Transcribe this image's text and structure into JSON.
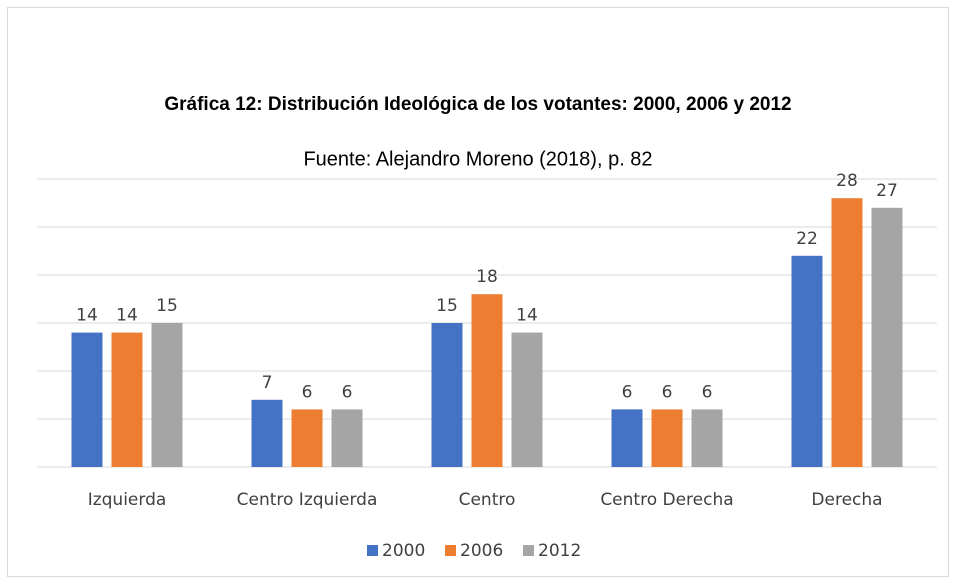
{
  "chart_data": {
    "type": "bar",
    "title": "Gráfica 12: Distribución Ideológica de los votantes: 2000, 2006 y 2012",
    "subtitle": "Fuente: Alejandro Moreno (2018), p. 82",
    "categories": [
      "Izquierda",
      "Centro Izquierda",
      "Centro",
      "Centro Derecha",
      "Derecha"
    ],
    "series": [
      {
        "name": "2000",
        "color": "#4472c4",
        "values": [
          14,
          7,
          15,
          6,
          22
        ]
      },
      {
        "name": "2006",
        "color": "#ed7d31",
        "values": [
          14,
          6,
          18,
          6,
          28
        ]
      },
      {
        "name": "2012",
        "color": "#a5a5a5",
        "values": [
          15,
          6,
          14,
          6,
          27
        ]
      }
    ],
    "ylim": [
      0,
      30
    ],
    "yticks": [
      0,
      5,
      10,
      15,
      20,
      25,
      30
    ],
    "grid": true,
    "legend": "bottom"
  }
}
